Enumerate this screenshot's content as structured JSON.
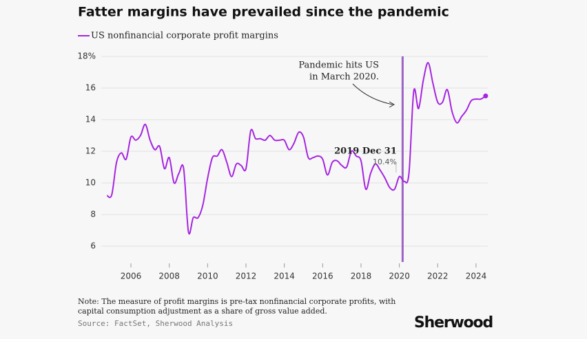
{
  "chart_data": {
    "type": "line",
    "title": "Fatter margins have prevailed since the pandemic",
    "x": [
      2004.75,
      2005.0,
      2005.25,
      2005.5,
      2005.75,
      2006.0,
      2006.25,
      2006.5,
      2006.75,
      2007.0,
      2007.25,
      2007.5,
      2007.75,
      2008.0,
      2008.25,
      2008.5,
      2008.75,
      2009.0,
      2009.25,
      2009.5,
      2009.75,
      2010.0,
      2010.25,
      2010.5,
      2010.75,
      2011.0,
      2011.25,
      2011.5,
      2011.75,
      2012.0,
      2012.25,
      2012.5,
      2012.75,
      2013.0,
      2013.25,
      2013.5,
      2013.75,
      2014.0,
      2014.25,
      2014.5,
      2014.75,
      2015.0,
      2015.25,
      2015.5,
      2015.75,
      2016.0,
      2016.25,
      2016.5,
      2016.75,
      2017.0,
      2017.25,
      2017.5,
      2017.75,
      2018.0,
      2018.25,
      2018.5,
      2018.75,
      2019.0,
      2019.25,
      2019.5,
      2019.75,
      2020.0,
      2020.25,
      2020.5,
      2020.75,
      2021.0,
      2021.25,
      2021.5,
      2021.75,
      2022.0,
      2022.25,
      2022.5,
      2022.75,
      2023.0,
      2023.25,
      2023.5,
      2023.75,
      2024.0,
      2024.25,
      2024.5
    ],
    "series": [
      {
        "name": "US nonfinancial corporate profit margins",
        "color": "#a524e0",
        "values": [
          9.2,
          9.25,
          11.3,
          11.9,
          11.5,
          12.9,
          12.7,
          13.0,
          13.7,
          12.7,
          12.1,
          12.3,
          10.9,
          11.6,
          10.0,
          10.6,
          10.9,
          6.9,
          7.8,
          7.8,
          8.6,
          10.3,
          11.6,
          11.7,
          12.1,
          11.3,
          10.4,
          11.2,
          11.1,
          10.9,
          13.3,
          12.8,
          12.8,
          12.7,
          13.0,
          12.7,
          12.7,
          12.7,
          12.1,
          12.5,
          13.2,
          12.9,
          11.6,
          11.6,
          11.7,
          11.5,
          10.5,
          11.3,
          11.4,
          11.1,
          11.0,
          12.0,
          11.7,
          11.4,
          9.6,
          10.6,
          11.2,
          10.8,
          10.3,
          9.7,
          9.6,
          10.4,
          10.1,
          10.6,
          15.8,
          14.7,
          16.5,
          17.6,
          16.3,
          15.1,
          15.1,
          15.9,
          14.5,
          13.8,
          14.2,
          14.6,
          15.2,
          15.3,
          15.3,
          15.5
        ]
      }
    ],
    "xlim": [
      2004.4,
      2025.0
    ],
    "xticks": [
      2006,
      2008,
      2010,
      2012,
      2014,
      2016,
      2018,
      2020,
      2022,
      2024
    ],
    "ylim": [
      5,
      18.5
    ],
    "yticks": [
      6,
      8,
      10,
      12,
      14,
      16,
      {
        "value": 18,
        "label": "18%"
      }
    ],
    "grid": true,
    "event": {
      "x": 2020.17,
      "label": [
        "Pandemic hits US",
        "in March 2020."
      ]
    },
    "tooltip": {
      "date": "2019 Dec 31",
      "x": 2019.83,
      "value": 10.4,
      "value_label": "10.4%"
    },
    "note": [
      "Note: The measure of profit margins is pre-tax nonfinancial corporate profits, with",
      "capital consumption adjustment as a share of gross value added."
    ],
    "source": "Source: FactSet, Sherwood Analysis",
    "brand": "Sherwood"
  }
}
